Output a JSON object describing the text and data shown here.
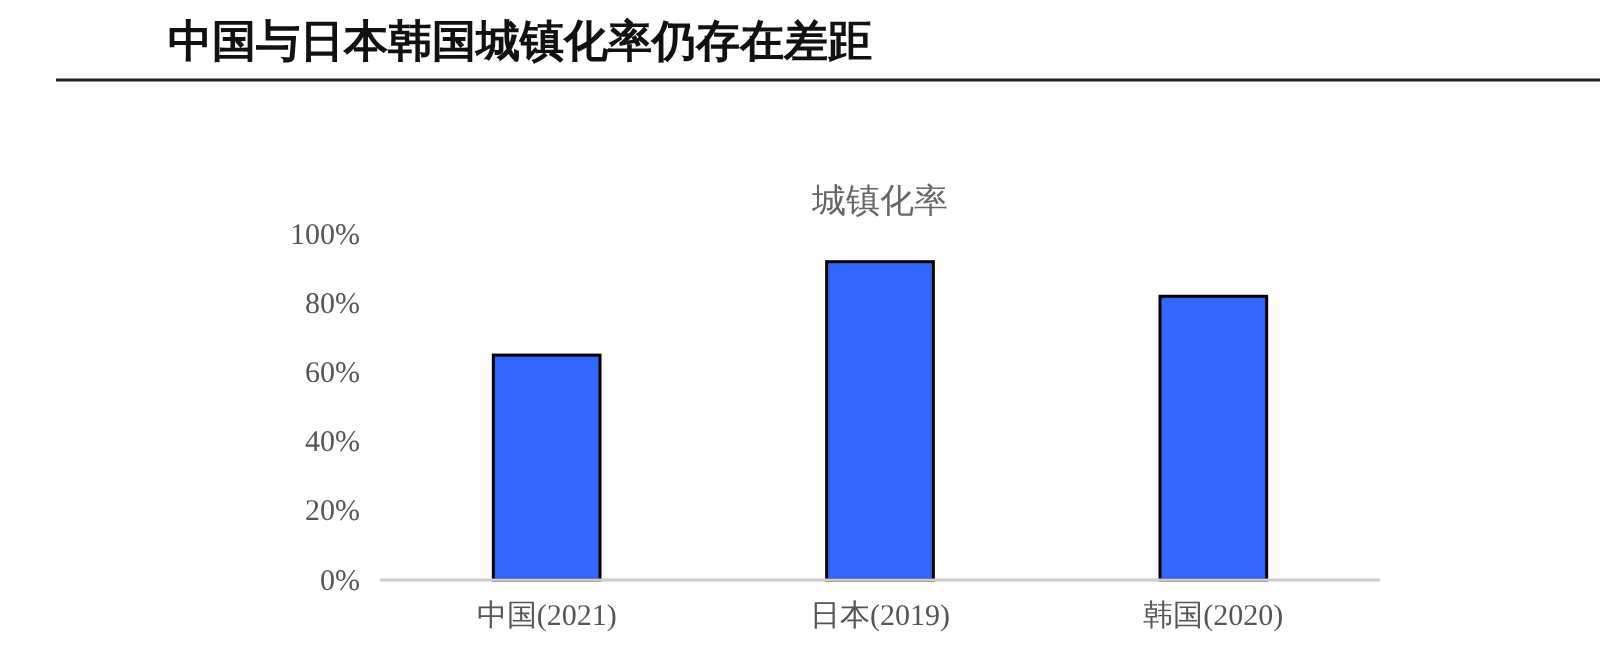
{
  "chart_data": {
    "type": "bar",
    "title": "中国与日本韩国城镇化率仍存在差距",
    "subtitle": "城镇化率",
    "categories": [
      "中国(2021)",
      "日本(2019)",
      "韩国(2020)"
    ],
    "values": [
      65,
      92,
      82
    ],
    "color": "#3366ff",
    "ylim": [
      0,
      100
    ],
    "yticks": [
      {
        "value": 0,
        "label": "0%"
      },
      {
        "value": 20,
        "label": "20%"
      },
      {
        "value": 40,
        "label": "40%"
      },
      {
        "value": 60,
        "label": "60%"
      },
      {
        "value": 80,
        "label": "80%"
      },
      {
        "value": 100,
        "label": "100%"
      }
    ],
    "grid": false
  }
}
